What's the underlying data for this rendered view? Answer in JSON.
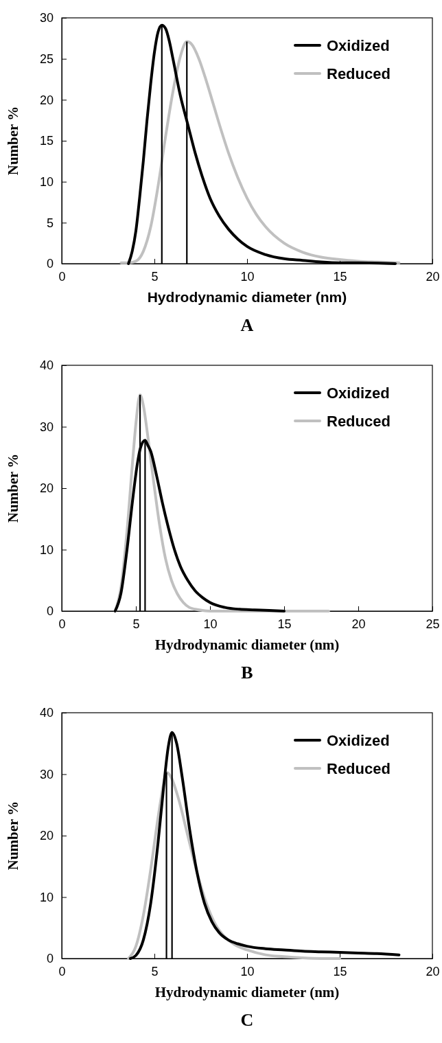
{
  "chart_data": [
    {
      "type": "line",
      "title": "A",
      "xlabel": "Hydrodynamic diameter (nm)",
      "ylabel": "Number %",
      "xlim": [
        0,
        20
      ],
      "xticks": [
        0,
        5,
        10,
        15,
        20
      ],
      "ylim": [
        0,
        30
      ],
      "yticks": [
        0,
        5,
        10,
        15,
        20,
        25,
        30
      ],
      "legend": "top right",
      "grid": false,
      "series": [
        {
          "name": "Oxidized",
          "color": "#000000",
          "x": [
            3.6,
            3.8,
            4.0,
            4.2,
            4.4,
            4.6,
            4.8,
            5.0,
            5.2,
            5.4,
            5.6,
            5.8,
            6.0,
            6.4,
            6.8,
            7.2,
            7.6,
            8,
            8.5,
            9,
            9.5,
            10,
            11,
            12,
            13,
            14,
            15,
            16,
            18
          ],
          "values": [
            0,
            1.5,
            4,
            8,
            12.5,
            17.5,
            22,
            25.8,
            28.3,
            29.1,
            28.7,
            27.2,
            25,
            20.5,
            17,
            13.5,
            10.5,
            8,
            5.8,
            4.2,
            3,
            2.1,
            1.1,
            0.6,
            0.4,
            0.2,
            0.1,
            0.1,
            0
          ]
        },
        {
          "name": "Reduced",
          "color": "#c0c0c0",
          "x": [
            3.2,
            3.6,
            4.0,
            4.4,
            4.8,
            5.2,
            5.6,
            6.0,
            6.4,
            6.75,
            7.0,
            7.4,
            7.8,
            8.2,
            8.6,
            9,
            9.5,
            10,
            10.5,
            11,
            12,
            13,
            14,
            15,
            16,
            17,
            18.2
          ],
          "values": [
            0.1,
            0.1,
            0.3,
            1.5,
            4.5,
            9.5,
            15.5,
            21,
            25.3,
            27.1,
            26.8,
            25,
            22.3,
            19.3,
            16.3,
            13.5,
            10.5,
            8,
            6,
            4.5,
            2.5,
            1.4,
            0.8,
            0.5,
            0.3,
            0.2,
            0.1
          ]
        }
      ],
      "ref_lines": [
        {
          "axis": "x",
          "value": 5.4,
          "color": "#000000"
        },
        {
          "axis": "x",
          "value": 6.75,
          "color": "#000000"
        }
      ]
    },
    {
      "type": "line",
      "title": "B",
      "xlabel": "Hydrodynamic diameter (nm)",
      "ylabel": "Number %",
      "xlim": [
        0,
        25
      ],
      "xticks": [
        0,
        5,
        10,
        15,
        20,
        25
      ],
      "ylim": [
        0,
        40
      ],
      "yticks": [
        0,
        10,
        20,
        30,
        40
      ],
      "legend": "top right",
      "grid": false,
      "series": [
        {
          "name": "Oxidized",
          "color": "#000000",
          "x": [
            3.6,
            4.0,
            4.4,
            4.8,
            5.1,
            5.3,
            5.62,
            5.8,
            6.0,
            6.4,
            6.8,
            7.2,
            7.6,
            8.0,
            8.5,
            9,
            9.5,
            10,
            11,
            12,
            13,
            14,
            15
          ],
          "values": [
            0,
            3,
            10,
            18.5,
            24,
            26.5,
            27.8,
            27,
            26,
            22,
            17.5,
            13.5,
            10,
            7.3,
            5,
            3.3,
            2.2,
            1.4,
            0.6,
            0.3,
            0.2,
            0.1,
            0
          ]
        },
        {
          "name": "Reduced",
          "color": "#c0c0c0",
          "x": [
            3.6,
            4.0,
            4.4,
            4.8,
            5.0,
            5.28,
            5.5,
            5.8,
            6.2,
            6.6,
            7.0,
            7.4,
            7.8,
            8.2,
            8.6,
            9.0,
            9.5,
            10,
            12,
            15,
            18
          ],
          "values": [
            0,
            4,
            13,
            25,
            30.5,
            35.2,
            33.5,
            28.5,
            21,
            14,
            8.5,
            5,
            2.8,
            1.4,
            0.6,
            0.3,
            0.1,
            0,
            0,
            0,
            0
          ]
        }
      ],
      "ref_lines": [
        {
          "axis": "x",
          "value": 5.28,
          "color": "#000000"
        },
        {
          "axis": "x",
          "value": 5.62,
          "color": "#000000"
        }
      ]
    },
    {
      "type": "line",
      "title": "C",
      "xlabel": "Hydrodynamic diameter (nm)",
      "ylabel": "Number %",
      "xlim": [
        0,
        20
      ],
      "xticks": [
        0,
        5,
        10,
        15,
        20
      ],
      "ylim": [
        0,
        40
      ],
      "yticks": [
        0,
        10,
        20,
        30,
        40
      ],
      "legend": "top right",
      "grid": false,
      "series": [
        {
          "name": "Oxidized",
          "color": "#000000",
          "x": [
            3.7,
            4.0,
            4.4,
            4.8,
            5.2,
            5.5,
            5.75,
            5.95,
            6.2,
            6.5,
            6.9,
            7.3,
            7.7,
            8.1,
            8.5,
            9,
            9.5,
            10,
            11,
            12,
            13,
            14,
            15,
            16,
            17,
            18.2
          ],
          "values": [
            0,
            0.5,
            3,
            9,
            19,
            28,
            34.5,
            36.8,
            35,
            29.5,
            21,
            14,
            9,
            6,
            4.2,
            3,
            2.4,
            2,
            1.6,
            1.4,
            1.2,
            1.1,
            1,
            0.9,
            0.8,
            0.6
          ]
        },
        {
          "name": "Reduced",
          "color": "#c0c0c0",
          "x": [
            3.6,
            4.0,
            4.4,
            4.8,
            5.2,
            5.5,
            5.65,
            5.9,
            6.3,
            6.8,
            7.3,
            7.8,
            8.3,
            8.8,
            9.3,
            10,
            11,
            12,
            13,
            14,
            15
          ],
          "values": [
            0,
            2,
            7,
            14.5,
            23,
            28.5,
            30.3,
            29.5,
            26,
            20,
            14,
            9,
            5.5,
            3.5,
            2.3,
            1.4,
            0.6,
            0.3,
            0.1,
            0,
            0
          ]
        }
      ],
      "ref_lines": [
        {
          "axis": "x",
          "value": 5.65,
          "color": "#000000"
        },
        {
          "axis": "x",
          "value": 5.95,
          "color": "#000000"
        }
      ]
    }
  ]
}
